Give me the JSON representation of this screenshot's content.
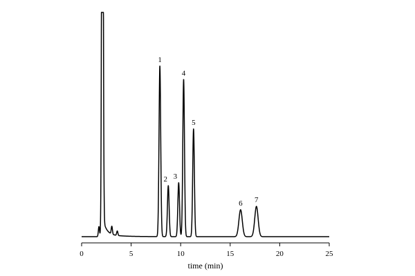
{
  "chart_data": {
    "type": "line",
    "title": "",
    "xlabel": "time (min)",
    "ylabel": "",
    "xlim": [
      0,
      25
    ],
    "x_ticks": [
      0,
      5,
      10,
      15,
      20,
      25
    ],
    "y_axis_shown": false,
    "grid": false,
    "legend": "none",
    "line_color": "#000000",
    "baseline": 0,
    "ylim": [
      0,
      1.0
    ],
    "solvent_front": {
      "time": 2.1,
      "height": 1.0,
      "clipped": true
    },
    "minor_peaks": [
      {
        "time": 1.75,
        "height": 0.045
      },
      {
        "time": 3.05,
        "height": 0.035
      },
      {
        "time": 3.6,
        "height": 0.02
      }
    ],
    "peaks": [
      {
        "label": "1",
        "time": 7.9,
        "height": 0.76
      },
      {
        "label": "2",
        "time": 8.75,
        "height": 0.227
      },
      {
        "label": "3",
        "time": 9.8,
        "height": 0.24
      },
      {
        "label": "4",
        "time": 10.3,
        "height": 0.7
      },
      {
        "label": "5",
        "time": 11.3,
        "height": 0.48
      },
      {
        "label": "6",
        "time": 16.05,
        "height": 0.12
      },
      {
        "label": "7",
        "time": 17.65,
        "height": 0.135
      }
    ]
  }
}
